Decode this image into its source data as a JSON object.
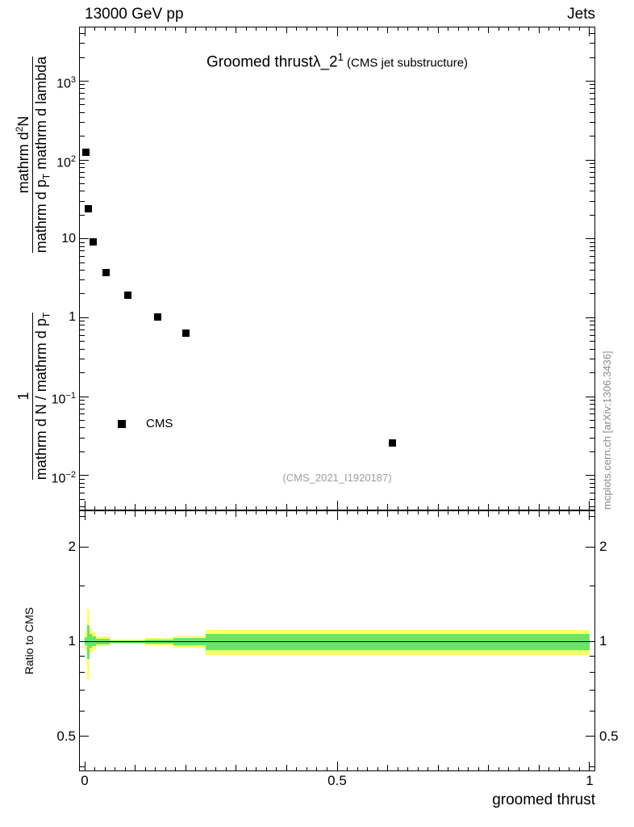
{
  "chart_data": {
    "type": "scatter",
    "header_left": "13000 GeV pp",
    "header_right": "Jets",
    "title_segments": [
      {
        "text": "Groomed thrust"
      },
      {
        "text": "λ_2"
      },
      {
        "text": "1",
        "style": "sup"
      },
      {
        "text": " (CMS jet substructure)",
        "style": "small"
      }
    ],
    "xlabel": "groomed thrust",
    "watermark": "(CMS_2021_I1920187)",
    "right_caption": "mcplots.cern.ch [arXiv:1306.3436]",
    "legend": [
      {
        "label": "CMS",
        "marker": "black-square"
      }
    ],
    "colors": {
      "band_outer": "#ffff66",
      "band_inner": "#66e866",
      "marker": "#000000",
      "watermark": "#9e9e9e",
      "caption": "#8a8a8a"
    },
    "ylabel": {
      "fractions": [
        {
          "num": [
            {
              "text": "1"
            }
          ],
          "den": [
            {
              "text": "mathrm d N / mathrm d p"
            },
            {
              "text": "T",
              "style": "sub"
            }
          ]
        },
        {
          "num": [
            {
              "text": "mathrm d"
            },
            {
              "text": "2",
              "style": "sup"
            },
            {
              "text": "N"
            }
          ],
          "den": [
            {
              "text": "mathrm d p"
            },
            {
              "text": "T",
              "style": "sub"
            },
            {
              "text": " mathrm d lambda"
            }
          ]
        }
      ]
    },
    "main": {
      "xscale": "linear",
      "xlim": [
        -0.0112,
        1.0112
      ],
      "yscale": "log",
      "ylim": [
        0.0036,
        4900
      ],
      "xticks": [
        {
          "v": 0,
          "label": "0"
        },
        {
          "v": 0.5,
          "label": "0.5"
        },
        {
          "v": 1,
          "label": "1"
        }
      ],
      "xticks_minor_step": 0.1,
      "xticks_micro_step": 0.02,
      "yticks": [
        {
          "v": 1000,
          "base": "10",
          "exp": "3"
        },
        {
          "v": 100,
          "base": "10",
          "exp": "2"
        },
        {
          "v": 10,
          "base": "10",
          "exp": ""
        },
        {
          "v": 1,
          "base": "1",
          "exp": ""
        },
        {
          "v": 0.1,
          "base": "10",
          "exp": "−1"
        },
        {
          "v": 0.01,
          "base": "10",
          "exp": "−2"
        }
      ],
      "series": [
        {
          "name": "CMS",
          "marker": "square",
          "color": "#000000",
          "points": [
            [
              0.002,
              126
            ],
            [
              0.007,
              24
            ],
            [
              0.016,
              9.2
            ],
            [
              0.042,
              3.7
            ],
            [
              0.085,
              1.95
            ],
            [
              0.145,
              1.03
            ],
            [
              0.2,
              0.64
            ],
            [
              0.61,
              0.026
            ]
          ]
        }
      ]
    },
    "ratio": {
      "ylabel": "Ratio to CMS",
      "yscale": "log",
      "ylim": [
        0.387,
        2.61
      ],
      "reference": 1.0,
      "yticks": [
        {
          "v": 2,
          "label": "2"
        },
        {
          "v": 1,
          "label": "1"
        },
        {
          "v": 0.5,
          "label": "0.5"
        }
      ],
      "yticks_minor": [
        0.4,
        0.6,
        0.7,
        0.8,
        0.9,
        1.5,
        2.5
      ],
      "bands": [
        {
          "x0": 0.0,
          "x1": 0.004,
          "outer": [
            0.94,
            1.07
          ],
          "inner": [
            0.97,
            1.035
          ]
        },
        {
          "x0": 0.004,
          "x1": 0.009,
          "outer": [
            0.76,
            1.27
          ],
          "inner": [
            0.88,
            1.13
          ]
        },
        {
          "x0": 0.009,
          "x1": 0.014,
          "outer": [
            0.92,
            1.1
          ],
          "inner": [
            0.955,
            1.055
          ]
        },
        {
          "x0": 0.014,
          "x1": 0.022,
          "outer": [
            0.94,
            1.07
          ],
          "inner": [
            0.965,
            1.04
          ]
        },
        {
          "x0": 0.022,
          "x1": 0.05,
          "outer": [
            0.965,
            1.04
          ],
          "inner": [
            0.98,
            1.022
          ]
        },
        {
          "x0": 0.05,
          "x1": 0.12,
          "outer": [
            0.985,
            1.016
          ],
          "inner": [
            0.992,
            1.009
          ]
        },
        {
          "x0": 0.12,
          "x1": 0.175,
          "outer": [
            0.97,
            1.028
          ],
          "inner": [
            0.983,
            1.016
          ]
        },
        {
          "x0": 0.175,
          "x1": 0.24,
          "outer": [
            0.955,
            1.038
          ],
          "inner": [
            0.973,
            1.024
          ]
        },
        {
          "x0": 0.24,
          "x1": 1.0,
          "outer": [
            0.905,
            1.09
          ],
          "inner": [
            0.94,
            1.055
          ]
        }
      ]
    }
  }
}
